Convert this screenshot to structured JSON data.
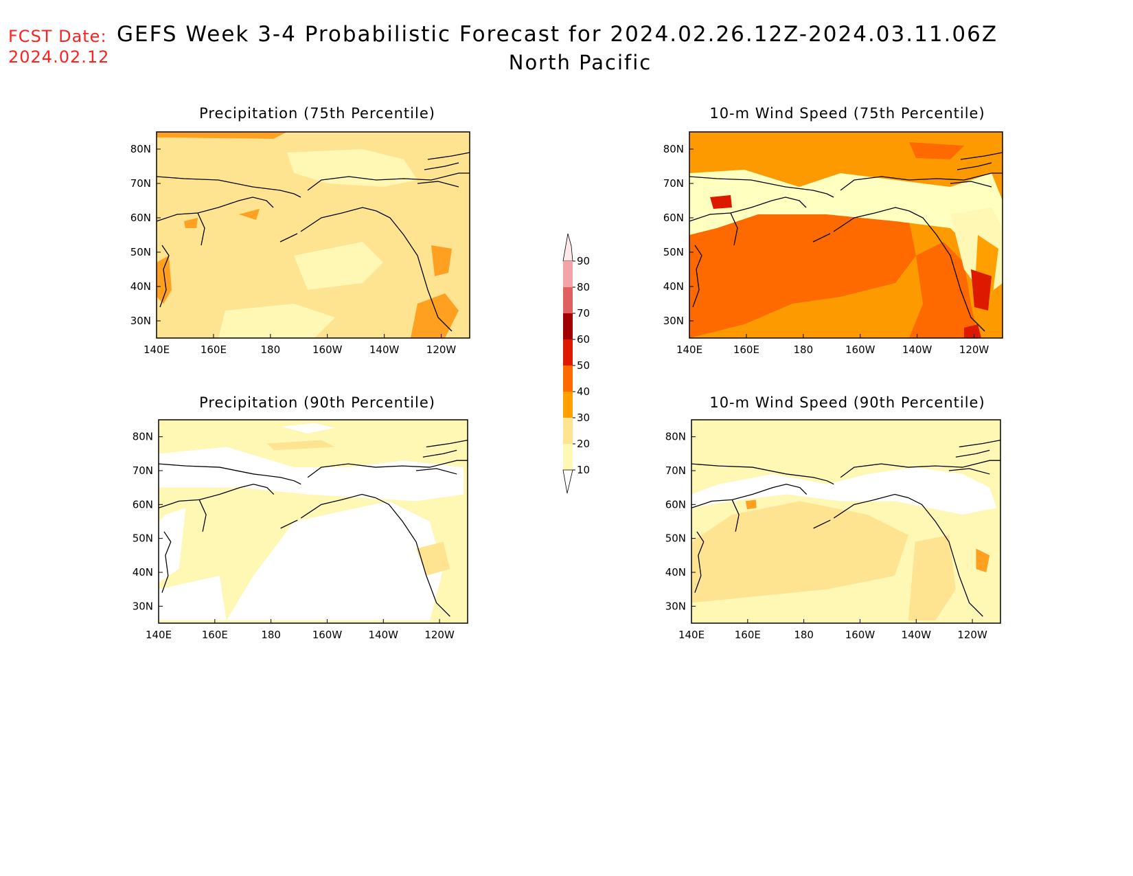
{
  "header": {
    "fcst_label": "FCST Date:",
    "fcst_date": "2024.02.12",
    "title": "GEFS Week 3-4 Probabilistic Forecast for 2024.02.26.12Z-2024.03.11.06Z",
    "subtitle": "North Pacific"
  },
  "panels": [
    {
      "id": "precip75",
      "title": "Precipitation (75th Percentile)",
      "base": "#fee391"
    },
    {
      "id": "wind75",
      "title": "10-m Wind Speed (75th Percentile)",
      "base": "#fd9a00"
    },
    {
      "id": "precip90",
      "title": "Precipitation (90th Percentile)",
      "base": "#fff7b4"
    },
    {
      "id": "wind90",
      "title": "10-m Wind Speed (90th Percentile)",
      "base": "#fff7b4"
    }
  ],
  "axes": {
    "lon_labels": [
      "140E",
      "160E",
      "180",
      "160W",
      "140W",
      "120W"
    ],
    "lat_labels": [
      "80N",
      "70N",
      "60N",
      "50N",
      "40N",
      "30N"
    ]
  },
  "colorbar": {
    "levels": [
      "90",
      "80",
      "70",
      "60",
      "50",
      "40",
      "30",
      "20",
      "10"
    ],
    "colors": [
      "#ffe8ea",
      "#f4a3a6",
      "#e06060",
      "#a00000",
      "#dd1a00",
      "#ff6a00",
      "#ff9f00",
      "#fee391",
      "#fff7b4"
    ]
  }
}
